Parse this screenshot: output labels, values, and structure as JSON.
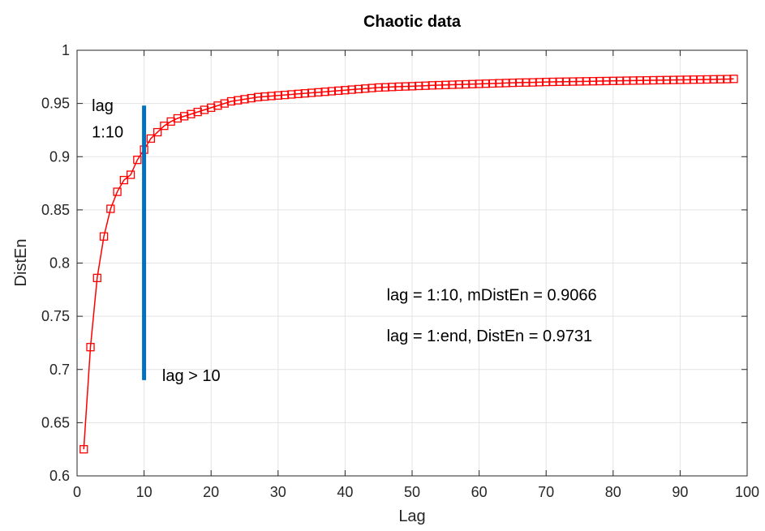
{
  "chart_data": {
    "type": "line",
    "title": "Chaotic data",
    "xlabel": "Lag",
    "ylabel": "DistEn",
    "xlim": [
      0,
      100
    ],
    "ylim": [
      0.6,
      1
    ],
    "xticks": [
      0,
      10,
      20,
      30,
      40,
      50,
      60,
      70,
      80,
      90,
      100
    ],
    "yticks": [
      0.6,
      0.65,
      0.7,
      0.75,
      0.8,
      0.85,
      0.9,
      0.95,
      1
    ],
    "xtick_labels": [
      "0",
      "10",
      "20",
      "30",
      "40",
      "50",
      "60",
      "70",
      "80",
      "90",
      "100"
    ],
    "ytick_labels": [
      "0.6",
      "0.65",
      "0.7",
      "0.75",
      "0.8",
      "0.85",
      "0.9",
      "0.95",
      "1"
    ],
    "grid": true,
    "series": [
      {
        "color": "#ff0000",
        "marker": "square",
        "x": [
          1,
          2,
          3,
          4,
          5,
          6,
          7,
          8,
          9,
          10,
          11,
          12,
          13,
          14,
          15,
          16,
          17,
          18,
          19,
          20,
          21,
          22,
          23,
          24,
          25,
          26,
          27,
          28,
          29,
          30,
          31,
          32,
          33,
          34,
          35,
          36,
          37,
          38,
          39,
          40,
          41,
          42,
          43,
          44,
          45,
          46,
          47,
          48,
          49,
          50,
          51,
          52,
          53,
          54,
          55,
          56,
          57,
          58,
          59,
          60,
          61,
          62,
          63,
          64,
          65,
          66,
          67,
          68,
          69,
          70,
          71,
          72,
          73,
          74,
          75,
          76,
          77,
          78,
          79,
          80,
          81,
          82,
          83,
          84,
          85,
          86,
          87,
          88,
          89,
          90,
          91,
          92,
          93,
          94,
          95,
          96,
          97,
          98
        ],
        "y": [
          0.625,
          0.721,
          0.786,
          0.825,
          0.851,
          0.867,
          0.878,
          0.883,
          0.897,
          0.9066,
          0.917,
          0.923,
          0.929,
          0.933,
          0.936,
          0.938,
          0.94,
          0.942,
          0.944,
          0.946,
          0.948,
          0.95,
          0.952,
          0.953,
          0.954,
          0.955,
          0.956,
          0.9565,
          0.957,
          0.9575,
          0.958,
          0.9585,
          0.959,
          0.9595,
          0.96,
          0.9605,
          0.961,
          0.9615,
          0.962,
          0.9625,
          0.963,
          0.9635,
          0.964,
          0.9645,
          0.965,
          0.9652,
          0.9655,
          0.9658,
          0.966,
          0.9662,
          0.9665,
          0.9667,
          0.967,
          0.9672,
          0.9674,
          0.9676,
          0.9678,
          0.968,
          0.9682,
          0.9684,
          0.9686,
          0.9688,
          0.969,
          0.9692,
          0.9694,
          0.9696,
          0.9697,
          0.9698,
          0.97,
          0.9702,
          0.9703,
          0.9704,
          0.9705,
          0.9706,
          0.9707,
          0.9708,
          0.9709,
          0.971,
          0.9711,
          0.9712,
          0.9713,
          0.9714,
          0.9715,
          0.9716,
          0.9717,
          0.9718,
          0.9719,
          0.972,
          0.9721,
          0.9722,
          0.9723,
          0.9724,
          0.9725,
          0.9726,
          0.9727,
          0.9728,
          0.9729,
          0.9731
        ]
      }
    ],
    "vline": {
      "x": 10,
      "y_from": 0.69,
      "y_to": 0.948,
      "color": "#0072bd"
    },
    "annotations": [
      {
        "text": "lag",
        "x": 2.2,
        "y": 0.943
      },
      {
        "text": "1:10",
        "x": 2.2,
        "y": 0.918
      },
      {
        "text": "lag > 10",
        "x": 12.7,
        "y": 0.689
      },
      {
        "text": "lag = 1:10,  mDistEn = 0.9066",
        "x": 46.2,
        "y": 0.765
      },
      {
        "text": "lag = 1:end,   DistEn = 0.9731",
        "x": 46.2,
        "y": 0.7265
      }
    ]
  }
}
